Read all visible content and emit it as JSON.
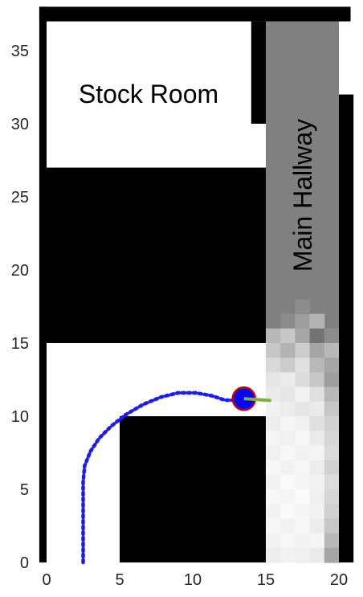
{
  "chart_data": {
    "type": "occupancy-grid-map",
    "xlim": [
      -0.5,
      20.8
    ],
    "ylim": [
      0,
      38
    ],
    "x_ticks": [
      "0",
      "5",
      "10",
      "15",
      "20"
    ],
    "y_ticks": [
      "0",
      "5",
      "10",
      "15",
      "20",
      "25",
      "30",
      "35"
    ],
    "labels": {
      "stock_room": "Stock Room",
      "main_hallway": "Main Hallway"
    },
    "colors": {
      "wall": "#000000",
      "free": "#ffffff",
      "hallway_unexplored": "#808080",
      "path": "#1a1aff",
      "robot_fill": "#0000ff",
      "robot_edge": "#cc0000",
      "heading": "#7fae3a"
    },
    "path_points": [
      [
        2.5,
        0.0
      ],
      [
        2.5,
        1.5
      ],
      [
        2.5,
        3.5
      ],
      [
        2.5,
        5.5
      ],
      [
        2.6,
        6.6
      ],
      [
        3.0,
        7.6
      ],
      [
        3.6,
        8.5
      ],
      [
        4.4,
        9.3
      ],
      [
        5.4,
        10.1
      ],
      [
        6.6,
        10.8
      ],
      [
        7.8,
        11.3
      ],
      [
        9.0,
        11.6
      ],
      [
        10.2,
        11.6
      ],
      [
        11.3,
        11.4
      ],
      [
        12.2,
        11.1
      ],
      [
        13.0,
        11.1
      ],
      [
        13.5,
        11.2
      ]
    ],
    "robot": {
      "x": 13.5,
      "y": 11.2,
      "heading_deg": -4
    },
    "walls": [
      {
        "x0": -0.5,
        "x1": 20.8,
        "y0": 37.0,
        "y1": 38.0
      },
      {
        "x0": -0.5,
        "x1": 0.0,
        "y0": 0.0,
        "y1": 38.0
      },
      {
        "x0": 0.0,
        "x1": 15.0,
        "y0": 15.0,
        "y1": 27.0
      },
      {
        "x0": 5.0,
        "x1": 15.0,
        "y0": 0.0,
        "y1": 10.0
      },
      {
        "x0": 14.0,
        "x1": 15.0,
        "y0": 30.0,
        "y1": 37.0
      },
      {
        "x0": 20.0,
        "x1": 21.0,
        "y0": 0.0,
        "y1": 32.0
      }
    ],
    "hallway": {
      "x0": 15.0,
      "x1": 20.0,
      "y0": 0.0,
      "y1": 37.0
    },
    "hallway_cells": [
      {
        "x": 16.0,
        "y": 16.0,
        "v": 0.55
      },
      {
        "x": 17.0,
        "y": 16.0,
        "v": 0.62
      },
      {
        "x": 18.0,
        "y": 16.0,
        "v": 0.7
      },
      {
        "x": 17.0,
        "y": 17.0,
        "v": 0.55
      },
      {
        "x": 15.0,
        "y": 15.0,
        "v": 0.72
      },
      {
        "x": 16.0,
        "y": 15.0,
        "v": 0.78
      },
      {
        "x": 17.0,
        "y": 15.0,
        "v": 0.65
      },
      {
        "x": 18.0,
        "y": 15.0,
        "v": 0.45
      },
      {
        "x": 19.0,
        "y": 15.0,
        "v": 0.55
      },
      {
        "x": 15.0,
        "y": 14.0,
        "v": 0.78
      },
      {
        "x": 16.0,
        "y": 14.0,
        "v": 0.7
      },
      {
        "x": 17.0,
        "y": 14.0,
        "v": 0.8
      },
      {
        "x": 18.0,
        "y": 14.0,
        "v": 0.65
      },
      {
        "x": 19.0,
        "y": 14.0,
        "v": 0.72
      },
      {
        "x": 15.0,
        "y": 13.0,
        "v": 0.85
      },
      {
        "x": 16.0,
        "y": 13.0,
        "v": 0.8
      },
      {
        "x": 17.0,
        "y": 13.0,
        "v": 0.88
      },
      {
        "x": 18.0,
        "y": 13.0,
        "v": 0.72
      },
      {
        "x": 19.0,
        "y": 13.0,
        "v": 0.65
      },
      {
        "x": 15.0,
        "y": 12.0,
        "v": 0.9
      },
      {
        "x": 16.0,
        "y": 12.0,
        "v": 0.92
      },
      {
        "x": 17.0,
        "y": 12.0,
        "v": 0.86
      },
      {
        "x": 18.0,
        "y": 12.0,
        "v": 0.78
      },
      {
        "x": 19.0,
        "y": 12.0,
        "v": 0.62
      },
      {
        "x": 15.0,
        "y": 11.0,
        "v": 0.92
      },
      {
        "x": 16.0,
        "y": 11.0,
        "v": 0.9
      },
      {
        "x": 17.0,
        "y": 11.0,
        "v": 0.95
      },
      {
        "x": 18.0,
        "y": 11.0,
        "v": 0.88
      },
      {
        "x": 19.0,
        "y": 11.0,
        "v": 0.72
      },
      {
        "x": 15.0,
        "y": 10.0,
        "v": 0.95
      },
      {
        "x": 16.0,
        "y": 10.0,
        "v": 0.93
      },
      {
        "x": 17.0,
        "y": 10.0,
        "v": 0.9
      },
      {
        "x": 18.0,
        "y": 10.0,
        "v": 0.92
      },
      {
        "x": 19.0,
        "y": 10.0,
        "v": 0.78
      },
      {
        "x": 15.0,
        "y": 9.0,
        "v": 0.93
      },
      {
        "x": 16.0,
        "y": 9.0,
        "v": 0.96
      },
      {
        "x": 17.0,
        "y": 9.0,
        "v": 0.94
      },
      {
        "x": 18.0,
        "y": 9.0,
        "v": 0.88
      },
      {
        "x": 19.0,
        "y": 9.0,
        "v": 0.82
      },
      {
        "x": 15.0,
        "y": 8.0,
        "v": 0.96
      },
      {
        "x": 16.0,
        "y": 8.0,
        "v": 0.94
      },
      {
        "x": 17.0,
        "y": 8.0,
        "v": 0.97
      },
      {
        "x": 18.0,
        "y": 8.0,
        "v": 0.92
      },
      {
        "x": 19.0,
        "y": 8.0,
        "v": 0.84
      },
      {
        "x": 15.0,
        "y": 7.0,
        "v": 0.94
      },
      {
        "x": 16.0,
        "y": 7.0,
        "v": 0.97
      },
      {
        "x": 17.0,
        "y": 7.0,
        "v": 0.95
      },
      {
        "x": 18.0,
        "y": 7.0,
        "v": 0.96
      },
      {
        "x": 19.0,
        "y": 7.0,
        "v": 0.86
      },
      {
        "x": 15.0,
        "y": 6.0,
        "v": 0.97
      },
      {
        "x": 16.0,
        "y": 6.0,
        "v": 0.95
      },
      {
        "x": 17.0,
        "y": 6.0,
        "v": 0.97
      },
      {
        "x": 18.0,
        "y": 6.0,
        "v": 0.93
      },
      {
        "x": 19.0,
        "y": 6.0,
        "v": 0.82
      },
      {
        "x": 15.0,
        "y": 5.0,
        "v": 0.95
      },
      {
        "x": 16.0,
        "y": 5.0,
        "v": 0.98
      },
      {
        "x": 17.0,
        "y": 5.0,
        "v": 0.96
      },
      {
        "x": 18.0,
        "y": 5.0,
        "v": 0.95
      },
      {
        "x": 19.0,
        "y": 5.0,
        "v": 0.86
      },
      {
        "x": 15.0,
        "y": 4.0,
        "v": 0.97
      },
      {
        "x": 16.0,
        "y": 4.0,
        "v": 0.96
      },
      {
        "x": 17.0,
        "y": 4.0,
        "v": 0.98
      },
      {
        "x": 18.0,
        "y": 4.0,
        "v": 0.94
      },
      {
        "x": 19.0,
        "y": 4.0,
        "v": 0.84
      },
      {
        "x": 15.0,
        "y": 3.0,
        "v": 0.95
      },
      {
        "x": 16.0,
        "y": 3.0,
        "v": 0.98
      },
      {
        "x": 17.0,
        "y": 3.0,
        "v": 0.96
      },
      {
        "x": 18.0,
        "y": 3.0,
        "v": 0.95
      },
      {
        "x": 19.0,
        "y": 3.0,
        "v": 0.82
      },
      {
        "x": 15.0,
        "y": 2.0,
        "v": 0.97
      },
      {
        "x": 16.0,
        "y": 2.0,
        "v": 0.95
      },
      {
        "x": 17.0,
        "y": 2.0,
        "v": 0.97
      },
      {
        "x": 18.0,
        "y": 2.0,
        "v": 0.93
      },
      {
        "x": 19.0,
        "y": 2.0,
        "v": 0.78
      },
      {
        "x": 15.0,
        "y": 1.0,
        "v": 0.95
      },
      {
        "x": 16.0,
        "y": 1.0,
        "v": 0.97
      },
      {
        "x": 17.0,
        "y": 1.0,
        "v": 0.95
      },
      {
        "x": 18.0,
        "y": 1.0,
        "v": 0.96
      },
      {
        "x": 19.0,
        "y": 1.0,
        "v": 0.72
      },
      {
        "x": 15.0,
        "y": 0.0,
        "v": 0.93
      },
      {
        "x": 16.0,
        "y": 0.0,
        "v": 0.95
      },
      {
        "x": 17.0,
        "y": 0.0,
        "v": 0.94
      },
      {
        "x": 18.0,
        "y": 0.0,
        "v": 0.92
      },
      {
        "x": 19.0,
        "y": 0.0,
        "v": 0.65
      }
    ]
  }
}
